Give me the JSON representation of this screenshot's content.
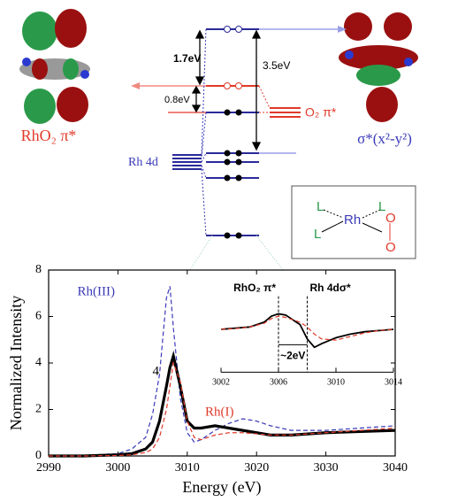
{
  "diagram": {
    "gap_top": "1.7eV",
    "gap_mid": "0.8eV",
    "gap_full": "3.5eV",
    "left_label": "RhO₂ π*",
    "right_label": "σ*(x²-y²)",
    "rh_label": "Rh 4d",
    "o2_label": "O₂ π*",
    "structure": {
      "ligand_1": "L",
      "ligand_2": "L",
      "ligand_3": "L",
      "metal": "Rh",
      "oxygen_1": "O",
      "oxygen_2": "O"
    }
  },
  "chart_data": [
    {
      "type": "line",
      "xlabel": "Energy (eV)",
      "ylabel": "Normalized Intensity",
      "x": [
        2990,
        2995,
        3000,
        3002,
        3004,
        3005,
        3006,
        3007,
        3007.5,
        3008,
        3009,
        3010,
        3011,
        3012,
        3014,
        3016,
        3018,
        3020,
        3022,
        3025,
        3030,
        3035,
        3040
      ],
      "xlim": [
        2990,
        3040
      ],
      "xticks": [
        2990,
        3000,
        3010,
        3020,
        3030,
        3040
      ],
      "ylim": [
        0,
        8
      ],
      "yticks": [
        0,
        2,
        4,
        6,
        8
      ],
      "series": [
        {
          "name": "Rh(III)",
          "color": "#3a3ab8",
          "dash": true,
          "values": [
            0,
            0.02,
            0.1,
            0.3,
            0.8,
            1.8,
            3.5,
            6.8,
            7.3,
            5.5,
            2.5,
            1.0,
            0.6,
            0.7,
            1.1,
            1.4,
            1.6,
            1.5,
            1.3,
            1.1,
            1.1,
            1.2,
            1.3
          ]
        },
        {
          "name": "4",
          "color": "#000000",
          "dash": false,
          "values": [
            0,
            0,
            0.05,
            0.1,
            0.3,
            0.6,
            1.5,
            3.0,
            3.8,
            4.3,
            3.0,
            1.5,
            1.2,
            1.2,
            1.3,
            1.2,
            1.1,
            1.0,
            0.9,
            0.9,
            1.0,
            1.05,
            1.1
          ]
        },
        {
          "name": "Rh(I)",
          "color": "#e03a2a",
          "dash": true,
          "values": [
            0,
            0,
            0.02,
            0.05,
            0.15,
            0.3,
            0.8,
            2.0,
            3.0,
            4.0,
            3.2,
            1.5,
            0.8,
            0.7,
            0.9,
            1.0,
            1.0,
            0.95,
            0.9,
            0.9,
            1.0,
            1.1,
            1.2
          ]
        }
      ]
    },
    {
      "type": "line",
      "x": [
        3002,
        3003,
        3004,
        3005,
        3005.5,
        3006,
        3006.5,
        3007,
        3007.5,
        3008,
        3008.5,
        3009,
        3010,
        3011,
        3012,
        3013,
        3014
      ],
      "xlim": [
        3002,
        3014
      ],
      "xticks": [
        3002,
        3006,
        3010,
        3014
      ],
      "ylim": [
        -1.2,
        1.2
      ],
      "vlines": [
        3006,
        3008
      ],
      "annotations": [
        "RhO₂ π*",
        "Rh 4dσ*",
        "~2eV"
      ],
      "series": [
        {
          "color": "#000000",
          "dash": false,
          "values": [
            0,
            0.05,
            0.1,
            0.3,
            0.55,
            0.65,
            0.6,
            0.4,
            0.2,
            -0.4,
            -0.75,
            -0.6,
            -0.35,
            -0.2,
            -0.1,
            -0.05,
            0
          ]
        },
        {
          "color": "#e03a2a",
          "dash": true,
          "values": [
            0,
            0.03,
            0.1,
            0.25,
            0.45,
            0.55,
            0.5,
            0.4,
            0.3,
            0.1,
            -0.2,
            -0.4,
            -0.45,
            -0.3,
            -0.15,
            -0.05,
            0
          ]
        }
      ]
    }
  ]
}
